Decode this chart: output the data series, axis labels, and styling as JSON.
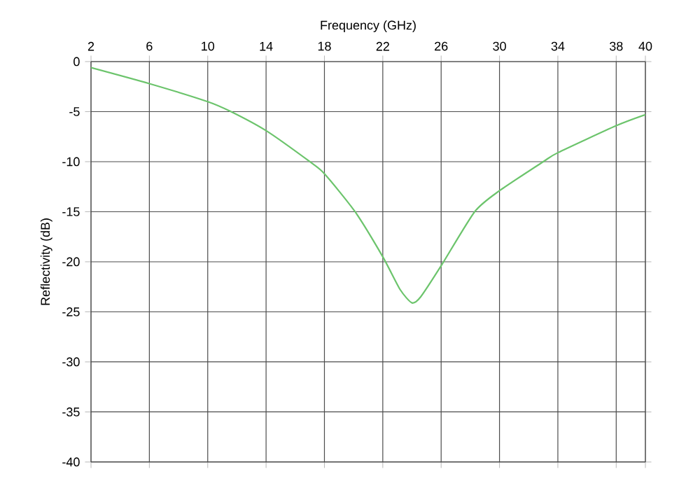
{
  "chart_data": {
    "type": "line",
    "xlabel": "Frequency (GHz)",
    "ylabel": "Reflectivity (dB)",
    "x": [
      2,
      6,
      10,
      11.6,
      14,
      17,
      18,
      20.1,
      22,
      23.2,
      24,
      24.6,
      26,
      28.3,
      30,
      33,
      34,
      38,
      40
    ],
    "series": [
      {
        "color": "#6cc46c",
        "values": [
          -0.6,
          -2.2,
          -4.0,
          -5,
          -6.9,
          -10,
          -11.2,
          -15,
          -19.5,
          -22.8,
          -24.1,
          -23.5,
          -20.4,
          -15,
          -12.9,
          -10,
          -9.1,
          -6.4,
          -5.3
        ]
      }
    ],
    "xlim": [
      2,
      40
    ],
    "xticks": [
      2,
      6,
      10,
      14,
      18,
      22,
      26,
      30,
      34,
      38,
      40
    ],
    "ylim": [
      -40,
      0
    ],
    "yticks": [
      -40,
      -35,
      -30,
      -25,
      -20,
      -15,
      -10,
      -5,
      0
    ],
    "grid": true,
    "marker": "none",
    "line_style": "solid"
  }
}
